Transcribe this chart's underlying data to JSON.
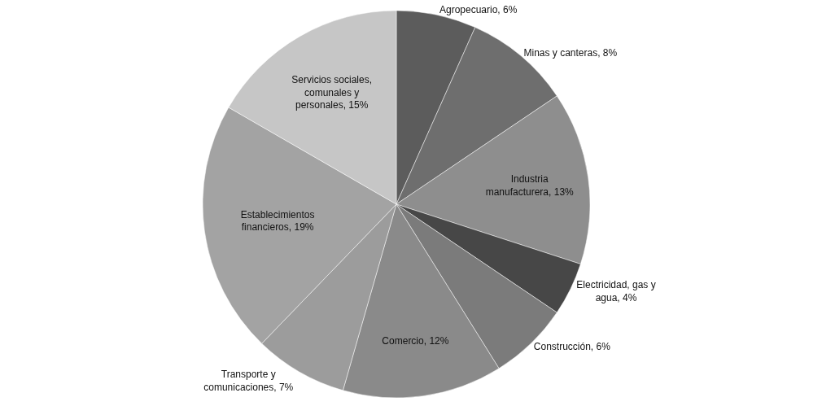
{
  "chart_data": {
    "type": "pie",
    "categories": [
      "Agropecuario",
      "Minas y canteras",
      "Industria manufacturera",
      "Electricidad, gas y agua",
      "Construcción",
      "Comercio",
      "Transporte y comunicaciones",
      "Establecimientos financieros",
      "Servicios sociales, comunales y personales"
    ],
    "values": [
      6,
      8,
      13,
      4,
      6,
      12,
      7,
      19,
      15
    ],
    "value_labels": [
      "6%",
      "8%",
      "13%",
      "4%",
      "6%",
      "12%",
      "7%",
      "19%",
      "15%"
    ],
    "colors": [
      "#5c5c5c",
      "#6e6e6e",
      "#8e8e8e",
      "#474747",
      "#7b7b7b",
      "#8a8a8a",
      "#9c9c9c",
      "#a3a3a3",
      "#c6c6c6"
    ],
    "legend": false
  }
}
